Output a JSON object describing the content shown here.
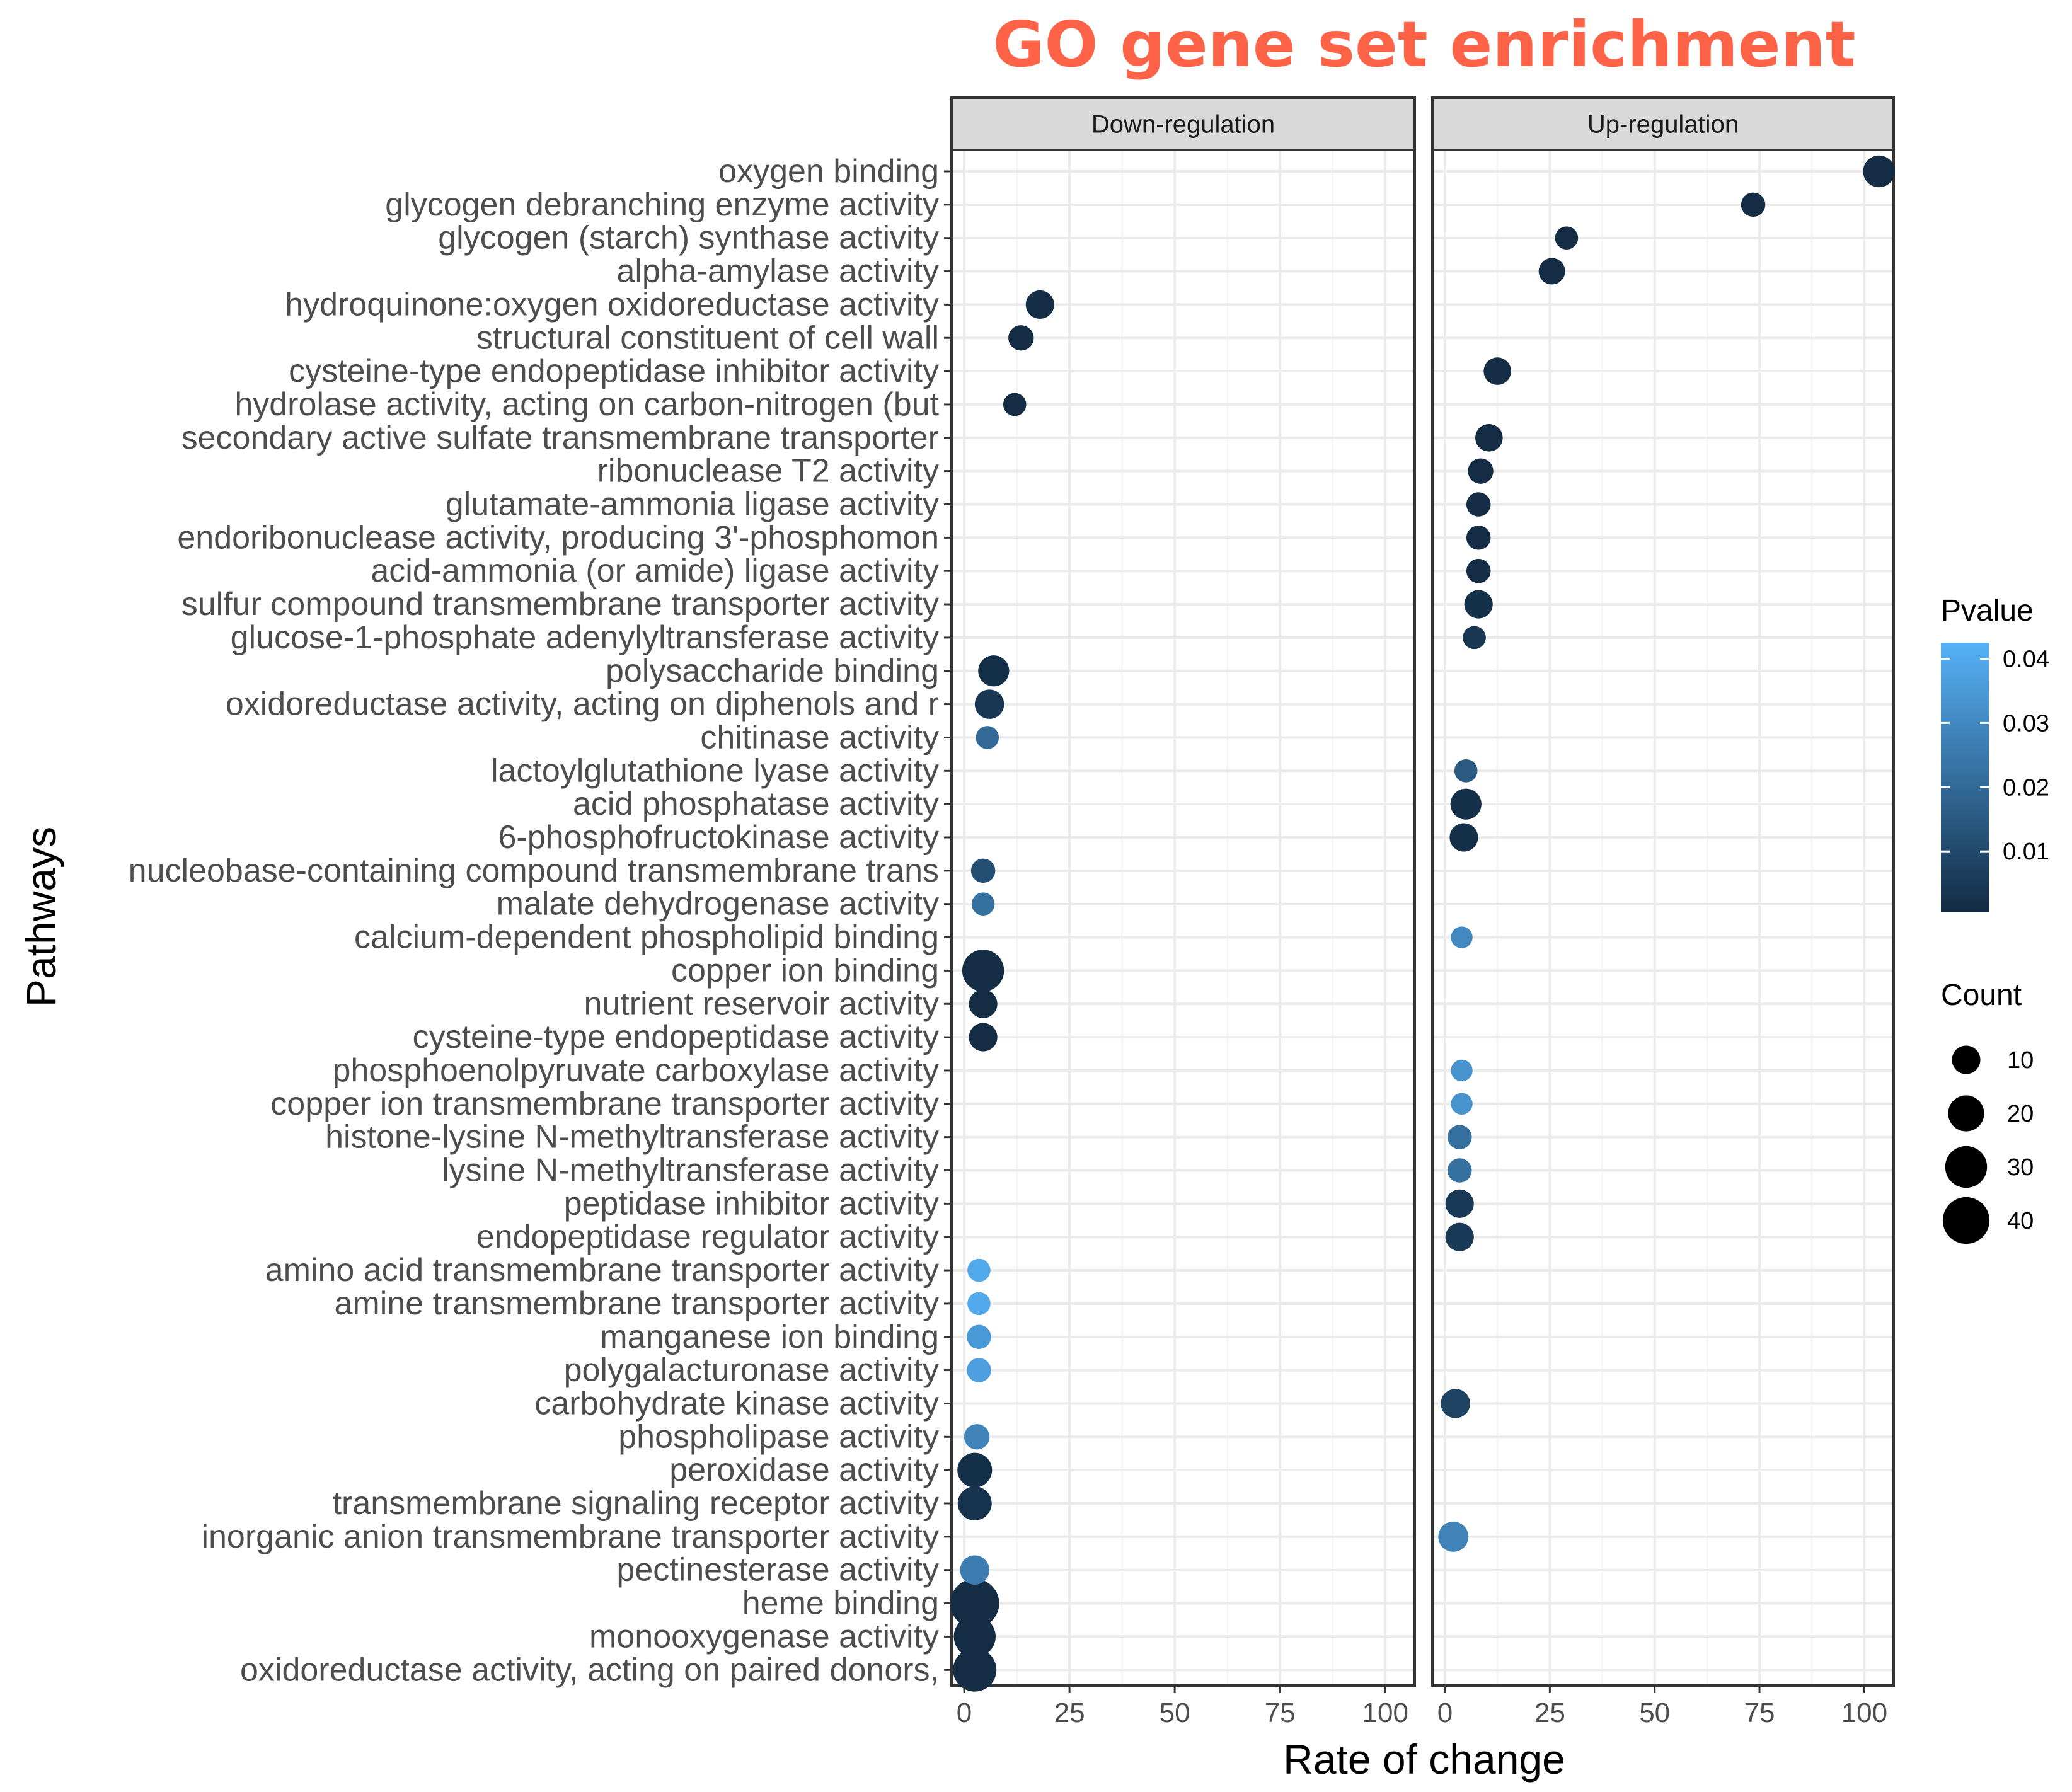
{
  "chart_data": {
    "type": "scatter",
    "title": "GO gene set enrichment",
    "xlabel": "Rate of change",
    "ylabel": "Pathways",
    "xlim": [
      -3,
      107
    ],
    "xticks": [
      0,
      25,
      50,
      75,
      100
    ],
    "grid": true,
    "facets": [
      "Down-regulation",
      "Up-regulation"
    ],
    "categories": [
      "oxygen binding",
      "glycogen debranching enzyme activity",
      "glycogen (starch) synthase activity",
      "alpha-amylase activity",
      "hydroquinone:oxygen oxidoreductase activity",
      "structural constituent of cell wall",
      "cysteine-type endopeptidase inhibitor activity",
      "hydrolase activity, acting on carbon-nitrogen (but",
      "secondary active sulfate transmembrane transporter",
      "ribonuclease T2 activity",
      "glutamate-ammonia ligase activity",
      "endoribonuclease activity, producing 3'-phosphomon",
      "acid-ammonia (or amide) ligase activity",
      "sulfur compound transmembrane transporter activity",
      "glucose-1-phosphate adenylyltransferase activity",
      "polysaccharide binding",
      "oxidoreductase activity, acting on diphenols and r",
      "chitinase activity",
      "lactoylglutathione lyase activity",
      "acid phosphatase activity",
      "6-phosphofructokinase activity",
      "nucleobase-containing compound transmembrane trans",
      "malate dehydrogenase activity",
      "calcium-dependent phospholipid binding",
      "copper ion binding",
      "nutrient reservoir activity",
      "cysteine-type endopeptidase activity",
      "phosphoenolpyruvate carboxylase activity",
      "copper ion transmembrane transporter activity",
      "histone-lysine N-methyltransferase activity",
      "lysine N-methyltransferase activity",
      "peptidase inhibitor activity",
      "endopeptidase regulator activity",
      "amino acid transmembrane transporter activity",
      "amine transmembrane transporter activity",
      "manganese ion binding",
      "polygalacturonase activity",
      "carbohydrate kinase activity",
      "phospholipase activity",
      "peroxidase activity",
      "transmembrane signaling receptor activity",
      "inorganic anion transmembrane transporter activity",
      "pectinesterase activity",
      "heme binding",
      "monooxygenase activity",
      "oxidoreductase activity, acting on paired donors,"
    ],
    "points": [
      {
        "facet": "Up-regulation",
        "row": 0,
        "x": 103.5,
        "count": 14,
        "pvalue": 0.001
      },
      {
        "facet": "Up-regulation",
        "row": 1,
        "x": 73.5,
        "count": 6,
        "pvalue": 0.001
      },
      {
        "facet": "Up-regulation",
        "row": 2,
        "x": 29,
        "count": 5,
        "pvalue": 0.001
      },
      {
        "facet": "Up-regulation",
        "row": 3,
        "x": 25.5,
        "count": 8,
        "pvalue": 0.001
      },
      {
        "facet": "Down-regulation",
        "row": 4,
        "x": 18,
        "count": 10,
        "pvalue": 0.001
      },
      {
        "facet": "Down-regulation",
        "row": 5,
        "x": 13.5,
        "count": 7,
        "pvalue": 0.001
      },
      {
        "facet": "Up-regulation",
        "row": 6,
        "x": 12.5,
        "count": 9,
        "pvalue": 0.001
      },
      {
        "facet": "Down-regulation",
        "row": 7,
        "x": 12,
        "count": 5,
        "pvalue": 0.001
      },
      {
        "facet": "Up-regulation",
        "row": 8,
        "x": 10.5,
        "count": 9,
        "pvalue": 0.001
      },
      {
        "facet": "Up-regulation",
        "row": 9,
        "x": 8.5,
        "count": 7,
        "pvalue": 0.001
      },
      {
        "facet": "Up-regulation",
        "row": 10,
        "x": 8,
        "count": 6,
        "pvalue": 0.001
      },
      {
        "facet": "Up-regulation",
        "row": 11,
        "x": 8,
        "count": 6,
        "pvalue": 0.001
      },
      {
        "facet": "Up-regulation",
        "row": 12,
        "x": 8,
        "count": 6,
        "pvalue": 0.001
      },
      {
        "facet": "Up-regulation",
        "row": 13,
        "x": 8,
        "count": 10,
        "pvalue": 0.002
      },
      {
        "facet": "Up-regulation",
        "row": 14,
        "x": 7,
        "count": 5,
        "pvalue": 0.004
      },
      {
        "facet": "Down-regulation",
        "row": 15,
        "x": 7,
        "count": 13,
        "pvalue": 0.002
      },
      {
        "facet": "Down-regulation",
        "row": 16,
        "x": 6,
        "count": 11,
        "pvalue": 0.004
      },
      {
        "facet": "Down-regulation",
        "row": 17,
        "x": 5.5,
        "count": 5,
        "pvalue": 0.02
      },
      {
        "facet": "Up-regulation",
        "row": 18,
        "x": 5,
        "count": 5,
        "pvalue": 0.015
      },
      {
        "facet": "Up-regulation",
        "row": 19,
        "x": 5,
        "count": 13,
        "pvalue": 0.002
      },
      {
        "facet": "Up-regulation",
        "row": 20,
        "x": 4.5,
        "count": 10,
        "pvalue": 0.002
      },
      {
        "facet": "Down-regulation",
        "row": 21,
        "x": 4.5,
        "count": 6,
        "pvalue": 0.012
      },
      {
        "facet": "Down-regulation",
        "row": 22,
        "x": 4.5,
        "count": 5,
        "pvalue": 0.022
      },
      {
        "facet": "Up-regulation",
        "row": 23,
        "x": 4,
        "count": 4,
        "pvalue": 0.03
      },
      {
        "facet": "Down-regulation",
        "row": 24,
        "x": 4.5,
        "count": 30,
        "pvalue": 0.001
      },
      {
        "facet": "Down-regulation",
        "row": 25,
        "x": 4.5,
        "count": 10,
        "pvalue": 0.001
      },
      {
        "facet": "Down-regulation",
        "row": 26,
        "x": 4.5,
        "count": 10,
        "pvalue": 0.001
      },
      {
        "facet": "Up-regulation",
        "row": 27,
        "x": 4,
        "count": 4,
        "pvalue": 0.033
      },
      {
        "facet": "Up-regulation",
        "row": 28,
        "x": 4,
        "count": 4,
        "pvalue": 0.033
      },
      {
        "facet": "Up-regulation",
        "row": 29,
        "x": 3.5,
        "count": 6,
        "pvalue": 0.022
      },
      {
        "facet": "Up-regulation",
        "row": 30,
        "x": 3.5,
        "count": 6,
        "pvalue": 0.022
      },
      {
        "facet": "Up-regulation",
        "row": 31,
        "x": 3.5,
        "count": 10,
        "pvalue": 0.005
      },
      {
        "facet": "Up-regulation",
        "row": 32,
        "x": 3.5,
        "count": 10,
        "pvalue": 0.005
      },
      {
        "facet": "Down-regulation",
        "row": 33,
        "x": 3.5,
        "count": 5,
        "pvalue": 0.04
      },
      {
        "facet": "Down-regulation",
        "row": 34,
        "x": 3.5,
        "count": 5,
        "pvalue": 0.04
      },
      {
        "facet": "Down-regulation",
        "row": 35,
        "x": 3.5,
        "count": 6,
        "pvalue": 0.035
      },
      {
        "facet": "Down-regulation",
        "row": 36,
        "x": 3.5,
        "count": 6,
        "pvalue": 0.037
      },
      {
        "facet": "Up-regulation",
        "row": 37,
        "x": 2.5,
        "count": 11,
        "pvalue": 0.008
      },
      {
        "facet": "Down-regulation",
        "row": 38,
        "x": 3,
        "count": 7,
        "pvalue": 0.028
      },
      {
        "facet": "Down-regulation",
        "row": 39,
        "x": 2.5,
        "count": 18,
        "pvalue": 0.002
      },
      {
        "facet": "Down-regulation",
        "row": 40,
        "x": 2.5,
        "count": 17,
        "pvalue": 0.003
      },
      {
        "facet": "Up-regulation",
        "row": 41,
        "x": 2,
        "count": 12,
        "pvalue": 0.028
      },
      {
        "facet": "Down-regulation",
        "row": 42,
        "x": 2.5,
        "count": 11,
        "pvalue": 0.026
      },
      {
        "facet": "Down-regulation",
        "row": 43,
        "x": 2.5,
        "count": 45,
        "pvalue": 0.001
      },
      {
        "facet": "Down-regulation",
        "row": 44,
        "x": 2.5,
        "count": 30,
        "pvalue": 0.001
      },
      {
        "facet": "Down-regulation",
        "row": 45,
        "x": 2.5,
        "count": 33,
        "pvalue": 0.001
      }
    ],
    "legend": {
      "color_title": "Pvalue",
      "color_ticks": [
        0.01,
        0.02,
        0.03,
        0.04
      ],
      "color_tick_labels": [
        "0.01",
        "0.02",
        "0.03",
        "0.04"
      ],
      "color_range": [
        0.0005,
        0.0425
      ],
      "color_low": "#132B43",
      "color_high": "#56B1F7",
      "size_title": "Count",
      "size_values": [
        10,
        20,
        30,
        40
      ],
      "size_labels": [
        "10",
        "20",
        "30",
        "40"
      ]
    },
    "colors": {
      "title": "#ff6347",
      "strip_bg": "#d9d9d9",
      "grid": "#ebebeb"
    }
  }
}
